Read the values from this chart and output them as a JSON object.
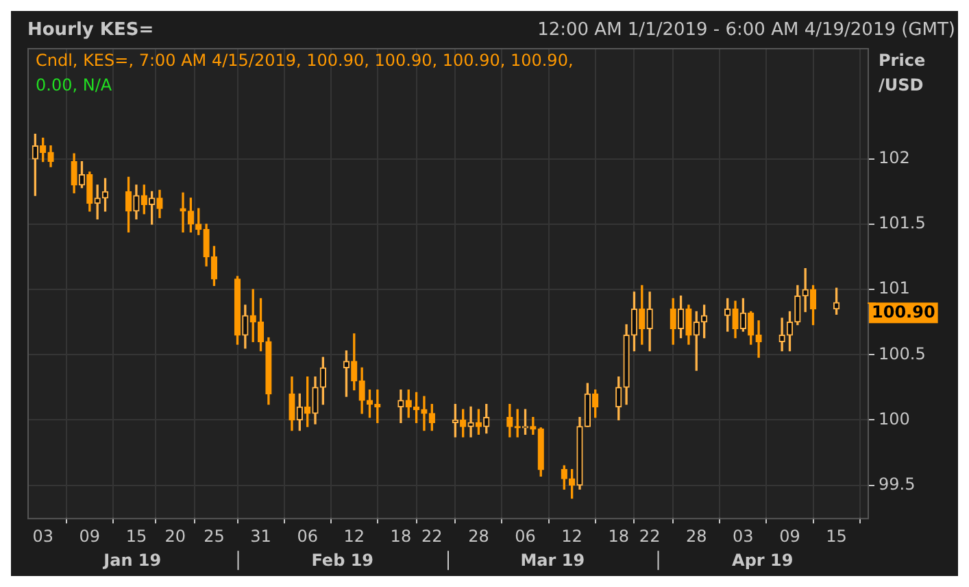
{
  "chart_data": {
    "type": "candlestick",
    "title": "Hourly KES=",
    "subtitle": "12:00 AM 1/1/2019 - 6:00 AM 4/19/2019 (GMT)",
    "ylabel": "Price /USD",
    "annotations": [
      "Cndl, KES=, 7:00 AM 4/15/2019, 100.90, 100.90, 100.90, 100.90,",
      "0.00, N/A",
      "Jan 19",
      "Feb 19",
      "Mar 19",
      "Apr 19"
    ],
    "x": [
      "2019-01-02",
      "2019-01-03",
      "2019-01-04",
      "2019-01-07",
      "2019-01-08",
      "2019-01-09",
      "2019-01-10",
      "2019-01-11",
      "2019-01-14",
      "2019-01-15",
      "2019-01-16",
      "2019-01-17",
      "2019-01-18",
      "2019-01-21",
      "2019-01-22",
      "2019-01-23",
      "2019-01-24",
      "2019-01-25",
      "2019-01-28",
      "2019-01-29",
      "2019-01-30",
      "2019-01-31",
      "2019-02-01",
      "2019-02-04",
      "2019-02-05",
      "2019-02-06",
      "2019-02-07",
      "2019-02-08",
      "2019-02-11",
      "2019-02-12",
      "2019-02-13",
      "2019-02-14",
      "2019-02-15",
      "2019-02-18",
      "2019-02-19",
      "2019-02-20",
      "2019-02-21",
      "2019-02-22",
      "2019-02-25",
      "2019-02-26",
      "2019-02-27",
      "2019-02-28",
      "2019-03-01",
      "2019-03-04",
      "2019-03-05",
      "2019-03-06",
      "2019-03-07",
      "2019-03-08",
      "2019-03-11",
      "2019-03-12",
      "2019-03-13",
      "2019-03-14",
      "2019-03-15",
      "2019-03-18",
      "2019-03-19",
      "2019-03-20",
      "2019-03-21",
      "2019-03-22",
      "2019-03-25",
      "2019-03-26",
      "2019-03-27",
      "2019-03-28",
      "2019-03-29",
      "2019-04-01",
      "2019-04-02",
      "2019-04-03",
      "2019-04-04",
      "2019-04-05",
      "2019-04-08",
      "2019-04-09",
      "2019-04-10",
      "2019-04-11",
      "2019-04-12",
      "2019-04-15"
    ],
    "ohlc": [
      [
        102.0,
        102.19,
        101.72,
        102.1
      ],
      [
        102.1,
        102.16,
        101.98,
        102.05
      ],
      [
        102.05,
        102.1,
        101.94,
        101.98
      ],
      [
        101.98,
        102.04,
        101.74,
        101.8
      ],
      [
        101.8,
        101.98,
        101.78,
        101.88
      ],
      [
        101.88,
        101.9,
        101.6,
        101.66
      ],
      [
        101.66,
        101.8,
        101.54,
        101.7
      ],
      [
        101.7,
        101.85,
        101.6,
        101.75
      ],
      [
        101.75,
        101.86,
        101.44,
        101.6
      ],
      [
        101.6,
        101.8,
        101.54,
        101.72
      ],
      [
        101.72,
        101.8,
        101.58,
        101.65
      ],
      [
        101.65,
        101.75,
        101.5,
        101.7
      ],
      [
        101.7,
        101.76,
        101.55,
        101.62
      ],
      [
        101.62,
        101.74,
        101.44,
        101.6
      ],
      [
        101.6,
        101.7,
        101.44,
        101.5
      ],
      [
        101.5,
        101.62,
        101.42,
        101.46
      ],
      [
        101.46,
        101.5,
        101.18,
        101.25
      ],
      [
        101.25,
        101.33,
        101.03,
        101.08
      ],
      [
        101.08,
        101.1,
        100.58,
        100.65
      ],
      [
        100.65,
        100.88,
        100.55,
        100.8
      ],
      [
        100.8,
        101.0,
        100.6,
        100.75
      ],
      [
        100.75,
        100.93,
        100.53,
        100.6
      ],
      [
        100.6,
        100.63,
        100.12,
        100.2
      ],
      [
        100.2,
        100.33,
        99.92,
        100.0
      ],
      [
        100.0,
        100.2,
        99.92,
        100.1
      ],
      [
        100.1,
        100.33,
        99.95,
        100.05
      ],
      [
        100.05,
        100.33,
        99.97,
        100.25
      ],
      [
        100.25,
        100.48,
        100.12,
        100.4
      ],
      [
        100.4,
        100.53,
        100.18,
        100.45
      ],
      [
        100.45,
        100.66,
        100.23,
        100.3
      ],
      [
        100.3,
        100.4,
        100.05,
        100.15
      ],
      [
        100.15,
        100.23,
        100.02,
        100.12
      ],
      [
        100.12,
        100.23,
        99.98,
        100.1
      ],
      [
        100.1,
        100.23,
        99.98,
        100.15
      ],
      [
        100.15,
        100.23,
        100.02,
        100.1
      ],
      [
        100.1,
        100.21,
        99.98,
        100.08
      ],
      [
        100.08,
        100.18,
        99.92,
        100.05
      ],
      [
        100.05,
        100.12,
        99.92,
        99.98
      ],
      [
        99.98,
        100.12,
        99.87,
        100.0
      ],
      [
        100.0,
        100.08,
        99.87,
        99.95
      ],
      [
        99.95,
        100.1,
        99.87,
        99.98
      ],
      [
        99.98,
        100.08,
        99.89,
        99.95
      ],
      [
        99.95,
        100.12,
        99.9,
        100.02
      ],
      [
        100.02,
        100.12,
        99.87,
        99.95
      ],
      [
        99.95,
        100.08,
        99.87,
        99.94
      ],
      [
        99.94,
        100.08,
        99.89,
        99.95
      ],
      [
        99.95,
        100.02,
        99.89,
        99.93
      ],
      [
        99.93,
        99.94,
        99.57,
        99.62
      ],
      [
        99.62,
        99.65,
        99.47,
        99.55
      ],
      [
        99.55,
        99.62,
        99.4,
        99.5
      ],
      [
        99.5,
        100.02,
        99.47,
        99.95
      ],
      [
        99.95,
        100.28,
        99.95,
        100.2
      ],
      [
        100.2,
        100.23,
        100.02,
        100.1
      ],
      [
        100.1,
        100.33,
        100.0,
        100.25
      ],
      [
        100.25,
        100.73,
        100.12,
        100.65
      ],
      [
        100.65,
        100.98,
        100.53,
        100.85
      ],
      [
        100.85,
        101.03,
        100.58,
        100.7
      ],
      [
        100.7,
        100.98,
        100.53,
        100.85
      ],
      [
        100.85,
        100.93,
        100.58,
        100.7
      ],
      [
        100.7,
        100.95,
        100.63,
        100.85
      ],
      [
        100.85,
        100.88,
        100.58,
        100.65
      ],
      [
        100.65,
        100.83,
        100.38,
        100.75
      ],
      [
        100.75,
        100.88,
        100.63,
        100.8
      ],
      [
        100.8,
        100.93,
        100.68,
        100.85
      ],
      [
        100.85,
        100.91,
        100.63,
        100.7
      ],
      [
        100.7,
        100.93,
        100.68,
        100.82
      ],
      [
        100.82,
        100.83,
        100.58,
        100.65
      ],
      [
        100.65,
        100.76,
        100.48,
        100.6
      ],
      [
        100.6,
        100.78,
        100.53,
        100.65
      ],
      [
        100.65,
        100.83,
        100.53,
        100.75
      ],
      [
        100.75,
        101.03,
        100.73,
        100.95
      ],
      [
        100.95,
        101.16,
        100.83,
        101.0
      ],
      [
        101.0,
        101.03,
        100.73,
        100.85
      ],
      [
        100.85,
        101.01,
        100.81,
        100.9
      ]
    ],
    "colors": [
      "#ffb347",
      "#ff9900",
      "#ff9900",
      "#ff9900",
      "#ffb347",
      "#ff9900",
      "#ffb347",
      "#ffb347",
      "#ff9900",
      "#ffb347",
      "#ff9900",
      "#ffb347",
      "#ff9900",
      "#ff9900",
      "#ff9900",
      "#ff9900",
      "#ff9900",
      "#ff9900",
      "#ff9900",
      "#ffb347",
      "#ff9900",
      "#ff9900",
      "#ff9900",
      "#ff9900",
      "#ffb347",
      "#ff9900",
      "#ffb347",
      "#ffb347",
      "#ffb347",
      "#ff9900",
      "#ff9900",
      "#ff9900",
      "#ff9900",
      "#ffb347",
      "#ff9900",
      "#ff9900",
      "#ff9900",
      "#ff9900",
      "#ffb347",
      "#ff9900",
      "#ffb347",
      "#ff9900",
      "#ffb347",
      "#ff9900",
      "#ff9900",
      "#ffb347",
      "#ff9900",
      "#ff9900",
      "#ff9900",
      "#ff9900",
      "#ffb347",
      "#ffb347",
      "#ff9900",
      "#ffb347",
      "#ffb347",
      "#ffb347",
      "#ff9900",
      "#ffb347",
      "#ff9900",
      "#ffb347",
      "#ff9900",
      "#ffb347",
      "#ffb347",
      "#ffb347",
      "#ff9900",
      "#ffb347",
      "#ff9900",
      "#ff9900",
      "#ffb347",
      "#ffb347",
      "#ffb347",
      "#ffb347",
      "#ff9900",
      "#ffb347"
    ],
    "xlim": [
      "2019-01-01",
      "2019-04-19"
    ],
    "xticks": [
      {
        "value": "2019-01-03",
        "label": "03"
      },
      {
        "value": "2019-01-09",
        "label": "09"
      },
      {
        "value": "2019-01-15",
        "label": "15"
      },
      {
        "value": "2019-01-20",
        "label": "20"
      },
      {
        "value": "2019-01-25",
        "label": "25"
      },
      {
        "value": "2019-01-31",
        "label": "31"
      },
      {
        "value": "2019-02-06",
        "label": "06"
      },
      {
        "value": "2019-02-12",
        "label": "12"
      },
      {
        "value": "2019-02-18",
        "label": "18"
      },
      {
        "value": "2019-02-22",
        "label": "22"
      },
      {
        "value": "2019-02-28",
        "label": "28"
      },
      {
        "value": "2019-03-06",
        "label": "06"
      },
      {
        "value": "2019-03-12",
        "label": "12"
      },
      {
        "value": "2019-03-18",
        "label": "18"
      },
      {
        "value": "2019-03-22",
        "label": "22"
      },
      {
        "value": "2019-03-28",
        "label": "28"
      },
      {
        "value": "2019-04-03",
        "label": "03"
      },
      {
        "value": "2019-04-09",
        "label": "09"
      },
      {
        "value": "2019-04-15",
        "label": "15"
      }
    ],
    "ylim": [
      99.25,
      102.85
    ],
    "yticks": [
      99.5,
      100,
      100.5,
      101,
      101.5,
      102
    ],
    "ref_lines": [
      {
        "axis": "y",
        "value": 100.9,
        "label": "100.90",
        "color": "#ff9900"
      }
    ],
    "grid": true,
    "legend": false
  }
}
